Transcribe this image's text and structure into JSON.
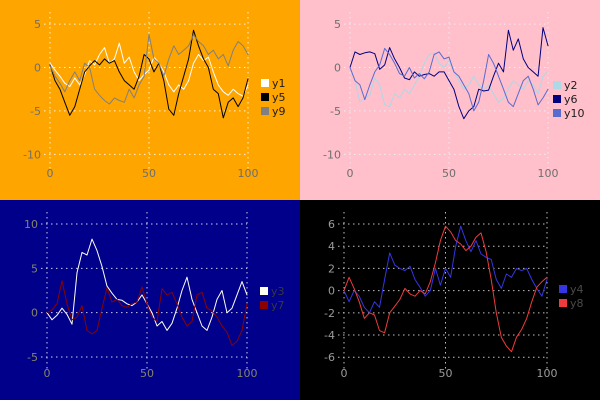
{
  "chart_data": [
    {
      "id": "top-left",
      "type": "line",
      "background": "#FFA500",
      "grid": true,
      "grid_color": "#FFFFFF",
      "grid_opacity": 0.85,
      "tick_color": "#6E6E6E",
      "legend_text_color": "#1C1C1C",
      "legend_position": "right",
      "xlabel": "",
      "ylabel": "",
      "xlim": [
        0,
        100
      ],
      "ylim": [
        -11,
        6.4
      ],
      "xticks": [
        0,
        50,
        100
      ],
      "yticks": [
        5,
        0,
        -5,
        -10
      ],
      "x_step": 2.5,
      "series": [
        {
          "name": "y1",
          "color": "#FFFFFF",
          "values": [
            0.5,
            -0.3,
            -1.0,
            -1.8,
            -2.2,
            -1.2,
            -2.0,
            -0.8,
            0.8,
            0.3,
            1.5,
            2.3,
            0.5,
            1.0,
            2.8,
            0.5,
            1.2,
            -0.5,
            -1.5,
            -0.8,
            -0.3,
            1.2,
            0.5,
            -0.5,
            -2.0,
            -2.8,
            -2.0,
            -2.5,
            -1.5,
            0.5,
            1.5,
            0.8,
            1.2,
            -0.5,
            -2.0,
            -2.8,
            -3.2,
            -2.5,
            -3.0,
            -3.3,
            -2.0
          ]
        },
        {
          "name": "y5",
          "color": "#000000",
          "values": [
            0.3,
            -1.5,
            -2.5,
            -4.0,
            -5.5,
            -4.5,
            -2.5,
            -0.5,
            0.2,
            0.8,
            0.3,
            1.0,
            0.5,
            0.8,
            -0.5,
            -1.5,
            -2.0,
            -2.5,
            -1.0,
            1.5,
            1.0,
            -0.5,
            0.5,
            -1.5,
            -4.8,
            -5.5,
            -3.0,
            -1.0,
            1.0,
            4.3,
            2.5,
            1.0,
            0.0,
            -2.5,
            -3.0,
            -5.8,
            -4.0,
            -3.5,
            -4.5,
            -3.5,
            -1.3
          ]
        },
        {
          "name": "y9",
          "color": "#808080",
          "values": [
            0.2,
            -1.0,
            -1.8,
            -2.8,
            -1.5,
            -0.5,
            -1.5,
            0.5,
            0.0,
            -2.5,
            -3.2,
            -3.8,
            -4.2,
            -3.5,
            -3.8,
            -4.0,
            -2.5,
            -3.5,
            -2.0,
            -1.0,
            3.8,
            1.0,
            0.5,
            -1.0,
            1.0,
            2.5,
            1.5,
            2.0,
            2.5,
            3.8,
            3.0,
            2.5,
            1.5,
            2.0,
            1.0,
            1.5,
            0.2,
            2.0,
            3.0,
            2.5,
            1.5
          ]
        }
      ]
    },
    {
      "id": "top-right",
      "type": "line",
      "background": "#FFC0CB",
      "grid": true,
      "grid_color": "#EDEDF2",
      "grid_opacity": 1,
      "tick_color": "#6E6E6E",
      "legend_text_color": "#1C1C1C",
      "legend_position": "right",
      "xlabel": "",
      "ylabel": "",
      "xlim": [
        0,
        100
      ],
      "ylim": [
        -11,
        6.4
      ],
      "xticks": [
        0,
        50,
        100
      ],
      "yticks": [
        5,
        0,
        -5,
        -10
      ],
      "x_step": 2.5,
      "series": [
        {
          "name": "y2",
          "color": "#ADD8E6",
          "values": [
            0.0,
            -1.5,
            -4.0,
            -3.5,
            -3.2,
            -1.2,
            -2.0,
            -4.3,
            -4.5,
            -3.0,
            -3.5,
            -2.5,
            -3.0,
            -2.0,
            -1.0,
            0.5,
            1.5,
            1.7,
            0.5,
            0.0,
            0.8,
            -0.5,
            -1.5,
            -2.5,
            -2.0,
            -1.0,
            -2.0,
            -2.6,
            -2.0,
            -3.0,
            -4.0,
            -3.5,
            -2.5,
            -1.5,
            -2.0,
            -2.5,
            -1.5,
            -2.0,
            -3.0,
            -1.0,
            -0.5
          ]
        },
        {
          "name": "y6",
          "color": "#000080",
          "values": [
            0.0,
            1.8,
            1.5,
            1.7,
            1.8,
            1.6,
            -0.2,
            0.3,
            2.3,
            1.0,
            0.0,
            -1.2,
            -1.4,
            -0.5,
            -1.0,
            -0.8,
            -0.7,
            -1.0,
            -0.5,
            -0.5,
            -1.5,
            -2.5,
            -4.5,
            -5.9,
            -5.0,
            -4.5,
            -2.5,
            -2.7,
            -2.6,
            -1.0,
            0.5,
            -0.5,
            4.3,
            2.0,
            3.3,
            1.0,
            0.0,
            -0.5,
            -1.0,
            4.6,
            2.5
          ]
        },
        {
          "name": "y10",
          "color": "#5A6BD0",
          "values": [
            0.0,
            -1.5,
            -2.0,
            -3.7,
            -2.0,
            -0.5,
            0.3,
            2.2,
            1.5,
            0.5,
            -0.7,
            -1.0,
            0.0,
            -1.2,
            -0.7,
            -1.3,
            -0.5,
            1.5,
            1.8,
            1.0,
            1.2,
            -0.5,
            -1.0,
            -2.0,
            -3.0,
            -5.0,
            -4.0,
            -1.5,
            1.5,
            0.5,
            -1.0,
            -2.5,
            -4.0,
            -4.5,
            -3.0,
            -1.5,
            -1.0,
            -2.5,
            -4.3,
            -3.5,
            -2.5
          ]
        }
      ]
    },
    {
      "id": "bottom-left",
      "type": "line",
      "background": "#00008B",
      "grid": true,
      "grid_color": "#FFFFFF",
      "grid_opacity": 0.8,
      "tick_color": "#84846C",
      "legend_text_color": "#383838",
      "legend_position": "right",
      "xlabel": "",
      "ylabel": "",
      "xlim": [
        0,
        100
      ],
      "ylim": [
        -5.9,
        11.35
      ],
      "xticks": [
        0,
        50,
        100
      ],
      "yticks": [
        10,
        5,
        0,
        -5
      ],
      "x_step": 2.5,
      "series": [
        {
          "name": "y3",
          "color": "#FFFFF0",
          "values": [
            0.0,
            -0.8,
            -0.3,
            0.5,
            -0.2,
            -1.3,
            4.5,
            6.8,
            6.5,
            8.3,
            7.0,
            5.2,
            3.0,
            2.2,
            1.5,
            1.4,
            1.0,
            0.8,
            1.2,
            2.0,
            1.0,
            0.0,
            -1.5,
            -1.0,
            -2.0,
            -1.2,
            0.5,
            2.5,
            4.0,
            1.5,
            0.0,
            -1.5,
            -2.0,
            -0.5,
            1.5,
            2.5,
            0.0,
            0.5,
            2.0,
            3.5,
            2.0
          ]
        },
        {
          "name": "y7",
          "color": "#8B0000",
          "values": [
            0.0,
            0.3,
            1.0,
            3.6,
            1.0,
            -0.8,
            -0.5,
            0.8,
            -2.0,
            -2.4,
            -2.0,
            0.5,
            2.8,
            1.2,
            1.5,
            0.8,
            0.6,
            1.0,
            1.2,
            2.9,
            1.0,
            -0.5,
            -1.0,
            2.7,
            2.0,
            2.3,
            1.0,
            -0.5,
            -1.5,
            -1.0,
            2.0,
            2.3,
            0.5,
            0.2,
            -0.5,
            -1.5,
            -2.2,
            -3.7,
            -3.2,
            -2.0,
            1.0
          ]
        }
      ]
    },
    {
      "id": "bottom-right",
      "type": "line",
      "background": "#000000",
      "grid": true,
      "grid_color": "#E0E0E0",
      "grid_opacity": 0.85,
      "tick_color": "#9B9B9B",
      "legend_text_color": "#4A4A4A",
      "legend_position": "right",
      "xlabel": "",
      "ylabel": "",
      "xlim": [
        0,
        100
      ],
      "ylim": [
        -6.7,
        7.08
      ],
      "xticks": [
        0,
        50,
        100
      ],
      "yticks": [
        6,
        4,
        2,
        0,
        -2,
        -4,
        -6
      ],
      "x_step": 2.5,
      "series": [
        {
          "name": "y4",
          "color": "#3535E5",
          "values": [
            0.0,
            -1.0,
            0.0,
            -0.5,
            -1.5,
            -2.0,
            -1.0,
            -1.5,
            1.0,
            3.4,
            2.3,
            2.0,
            1.8,
            2.2,
            1.0,
            0.3,
            -0.5,
            0.0,
            2.0,
            0.5,
            2.0,
            1.2,
            4.0,
            5.8,
            4.5,
            3.5,
            4.5,
            3.3,
            3.0,
            2.8,
            1.0,
            0.2,
            1.5,
            1.2,
            2.0,
            1.8,
            2.0,
            1.0,
            0.2,
            -0.5,
            1.0
          ]
        },
        {
          "name": "y8",
          "color": "#EE3B3B",
          "values": [
            0.0,
            1.2,
            0.2,
            -1.0,
            -2.5,
            -2.0,
            -2.2,
            -3.6,
            -3.8,
            -2.0,
            -1.4,
            -0.8,
            0.2,
            -0.3,
            -0.5,
            0.0,
            -0.3,
            0.8,
            2.5,
            4.5,
            5.8,
            5.3,
            4.5,
            4.2,
            3.6,
            4.0,
            4.8,
            5.2,
            3.5,
            1.0,
            -2.0,
            -4.2,
            -5.0,
            -5.5,
            -4.2,
            -3.5,
            -2.5,
            -1.0,
            0.3,
            0.8,
            1.2
          ]
        }
      ]
    }
  ]
}
